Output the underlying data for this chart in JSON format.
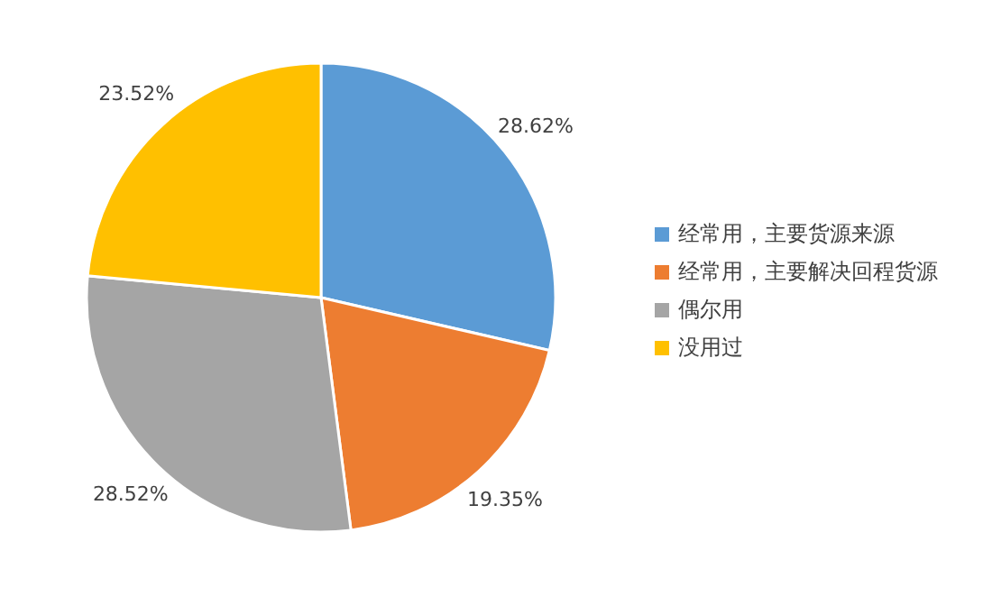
{
  "chart_data": {
    "type": "pie",
    "categories": [
      "经常用，主要货源来源",
      "经常用，主要解决回程货源",
      "偶尔用",
      "没用过"
    ],
    "values": [
      28.62,
      19.35,
      28.52,
      23.52
    ],
    "colors": [
      "#5b9bd5",
      "#ed7d31",
      "#a5a5a5",
      "#ffc000"
    ],
    "value_labels": [
      "28.62%",
      "19.35%",
      "28.52%",
      "23.52%"
    ],
    "legend": "right"
  }
}
